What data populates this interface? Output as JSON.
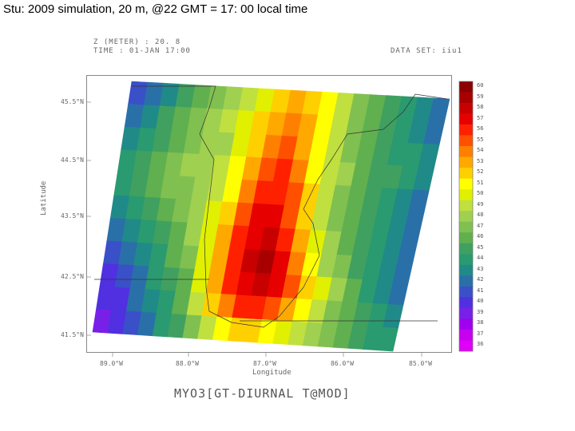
{
  "slide": {
    "title": "Stu: 2009 simulation, 20 m, @22 GMT = 17: 00 local time"
  },
  "plot": {
    "header_left_1": "Z (METER) : 20. 8",
    "header_left_2": "TIME : 01-JAN 17:00",
    "header_right": "DATA SET: iiu1",
    "ylabel": "Latitude",
    "xlabel": "Longitude",
    "y_ticks": [
      "45.5°N",
      "44.5°N",
      "43.5°N",
      "42.5°N",
      "41.5°N"
    ],
    "x_ticks": [
      "89.0°W",
      "88.0°W",
      "87.0°W",
      "86.0°W",
      "85.0°W"
    ],
    "caption": "MYO3[GT-DIURNAL T@MOD]"
  },
  "colorbar": {
    "levels": [
      "60",
      "59",
      "58",
      "57",
      "56",
      "55",
      "54",
      "53",
      "52",
      "51",
      "50",
      "49",
      "48",
      "47",
      "46",
      "45",
      "44",
      "43",
      "42",
      "41",
      "40",
      "39",
      "38",
      "37",
      "36"
    ],
    "colors": [
      "#8b0000",
      "#a80000",
      "#c80000",
      "#e60000",
      "#ff2000",
      "#ff5000",
      "#ff8000",
      "#ffa800",
      "#ffd000",
      "#ffff00",
      "#e0f000",
      "#c0e040",
      "#a0d050",
      "#80c050",
      "#60b050",
      "#40a060",
      "#2a9a70",
      "#208a88",
      "#2a70a8",
      "#3a50c8",
      "#5030e0",
      "#7820e8",
      "#a000f0",
      "#c800f0",
      "#e000f8"
    ]
  },
  "chart_data": {
    "type": "heatmap",
    "title": "",
    "xlabel": "Longitude",
    "ylabel": "Latitude",
    "x_ticks": [
      "89.0°W",
      "88.0°W",
      "87.0°W",
      "86.0°W",
      "85.0°W"
    ],
    "y_ticks": [
      "45.5°N",
      "44.5°N",
      "43.5°N",
      "42.5°N",
      "41.5°N"
    ],
    "z_range": [
      36,
      60
    ],
    "grid_values": [
      [
        41,
        42,
        43,
        45,
        46,
        47,
        48,
        49,
        50,
        52,
        53,
        52,
        51,
        49,
        47,
        46,
        45,
        44,
        43,
        42
      ],
      [
        42,
        43,
        45,
        46,
        47,
        48,
        49,
        50,
        52,
        53,
        54,
        53,
        51,
        49,
        47,
        46,
        45,
        44,
        43,
        42
      ],
      [
        43,
        44,
        45,
        46,
        47,
        48,
        48,
        50,
        52,
        54,
        55,
        53,
        51,
        49,
        47,
        46,
        45,
        44,
        44,
        43
      ],
      [
        44,
        45,
        46,
        47,
        48,
        48,
        49,
        51,
        53,
        55,
        56,
        54,
        51,
        49,
        48,
        46,
        45,
        45,
        44,
        43
      ],
      [
        44,
        45,
        46,
        47,
        47,
        48,
        49,
        51,
        54,
        56,
        56,
        55,
        52,
        49,
        47,
        46,
        45,
        44,
        43,
        42
      ],
      [
        43,
        44,
        45,
        46,
        47,
        48,
        50,
        52,
        55,
        57,
        57,
        55,
        52,
        49,
        47,
        46,
        45,
        44,
        43,
        42
      ],
      [
        42,
        43,
        44,
        45,
        46,
        48,
        50,
        53,
        56,
        57,
        58,
        56,
        53,
        50,
        48,
        46,
        45,
        44,
        43,
        42
      ],
      [
        41,
        42,
        43,
        44,
        46,
        47,
        50,
        53,
        56,
        58,
        59,
        57,
        54,
        51,
        48,
        47,
        45,
        44,
        43,
        42
      ],
      [
        40,
        41,
        42,
        44,
        45,
        46,
        50,
        53,
        56,
        57,
        58,
        57,
        55,
        52,
        50,
        48,
        46,
        44,
        43,
        42
      ],
      [
        40,
        40,
        42,
        43,
        44,
        46,
        49,
        52,
        54,
        56,
        56,
        55,
        53,
        51,
        49,
        47,
        46,
        45,
        44,
        43
      ],
      [
        39,
        40,
        41,
        42,
        44,
        45,
        47,
        49,
        51,
        52,
        52,
        51,
        50,
        49,
        48,
        47,
        46,
        45,
        44,
        44
      ]
    ]
  }
}
